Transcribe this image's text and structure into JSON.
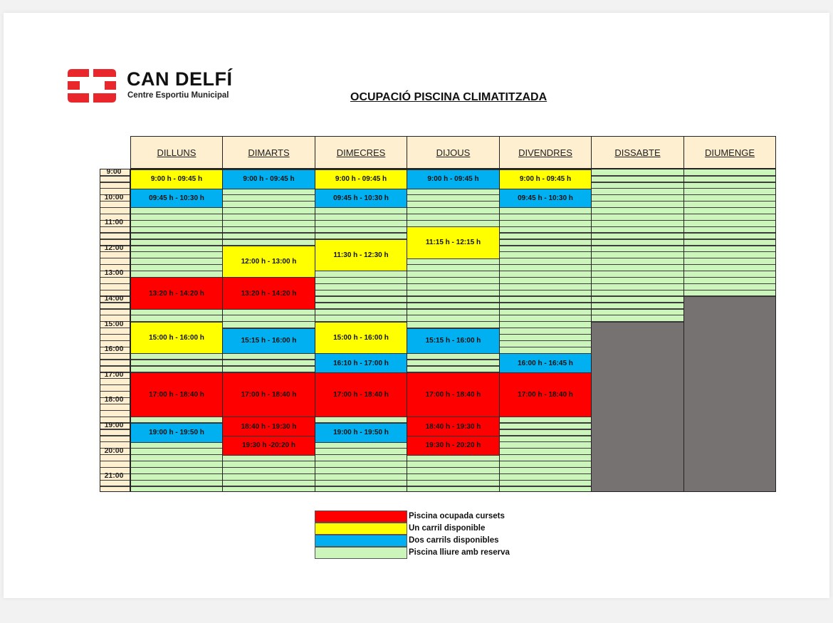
{
  "logo": {
    "name": "CAN DELFÍ",
    "subtitle": "Centre Esportiu Municipal",
    "color": "#e8262b"
  },
  "title": "OCUPACIÓ PISCINA CLIMATITZADA",
  "colors": {
    "red": "#ff0000",
    "yellow": "#ffff00",
    "blue": "#00b0f0",
    "green": "#ccf5bb",
    "closed": "#777272",
    "header": "#fdefd0"
  },
  "hours": [
    "9:00",
    "10:00",
    "11:00",
    "12:00",
    "13:00",
    "14:00",
    "15:00",
    "16:00",
    "17:00",
    "18:00",
    "19:00",
    "20:00",
    "21:00"
  ],
  "days": [
    {
      "label": "DILLUNS",
      "blocks": [
        {
          "label": "9:00 h - 09:45 h",
          "status": "yellow"
        },
        {
          "label": "09:45 h - 10:30 h",
          "status": "blue"
        },
        {
          "label": "13:20 h - 14:20 h",
          "status": "red"
        },
        {
          "label": "15:00 h - 16:00 h",
          "status": "yellow"
        },
        {
          "label": "17:00 h - 18:40 h",
          "status": "red"
        },
        {
          "label": "19:00 h - 19:50 h",
          "status": "blue"
        }
      ]
    },
    {
      "label": "DIMARTS",
      "blocks": [
        {
          "label": "9:00 h - 09:45 h",
          "status": "blue"
        },
        {
          "label": "12:00 h - 13:00 h",
          "status": "yellow"
        },
        {
          "label": "13:20 h - 14:20 h",
          "status": "red"
        },
        {
          "label": "15:15 h - 16:00 h",
          "status": "blue"
        },
        {
          "label": "17:00 h - 18:40 h",
          "status": "red"
        },
        {
          "label": "18:40 h - 19:30 h",
          "status": "red"
        },
        {
          "label": "19:30 h -20:20 h",
          "status": "red"
        }
      ]
    },
    {
      "label": "DIMECRES",
      "blocks": [
        {
          "label": "9:00 h - 09:45 h",
          "status": "yellow"
        },
        {
          "label": "09:45 h - 10:30 h",
          "status": "blue"
        },
        {
          "label": "11:30 h - 12:30 h",
          "status": "yellow"
        },
        {
          "label": "15:00 h - 16:00 h",
          "status": "yellow"
        },
        {
          "label": "16:10 h - 17:00 h",
          "status": "blue"
        },
        {
          "label": "17:00 h - 18:40 h",
          "status": "red"
        },
        {
          "label": "19:00 h - 19:50 h",
          "status": "blue"
        }
      ]
    },
    {
      "label": "DIJOUS",
      "blocks": [
        {
          "label": "9:00 h - 09:45 h",
          "status": "blue"
        },
        {
          "label": "11:15 h - 12:15 h",
          "status": "yellow"
        },
        {
          "label": "15:15 h - 16:00 h",
          "status": "blue"
        },
        {
          "label": "17:00 h - 18:40 h",
          "status": "red"
        },
        {
          "label": "18:40 h - 19:30 h",
          "status": "red"
        },
        {
          "label": "19:30 h - 20:20 h",
          "status": "red"
        }
      ]
    },
    {
      "label": "DIVENDRES",
      "blocks": [
        {
          "label": "9:00 h - 09:45 h",
          "status": "yellow"
        },
        {
          "label": "09:45 h - 10:30 h",
          "status": "blue"
        },
        {
          "label": "16:00 h - 16:45 h",
          "status": "blue"
        },
        {
          "label": "17:00 h - 18:40 h",
          "status": "red"
        }
      ]
    },
    {
      "label": "DISSABTE",
      "blocks": []
    },
    {
      "label": "DIUMENGE",
      "blocks": []
    }
  ],
  "legend": [
    {
      "label": "Piscina ocupada cursets",
      "status": "red"
    },
    {
      "label": "Un carril disponible",
      "status": "yellow"
    },
    {
      "label": "Dos carrils disponibles",
      "status": "blue"
    },
    {
      "label": "Piscina lliure amb reserva",
      "status": "green"
    }
  ]
}
